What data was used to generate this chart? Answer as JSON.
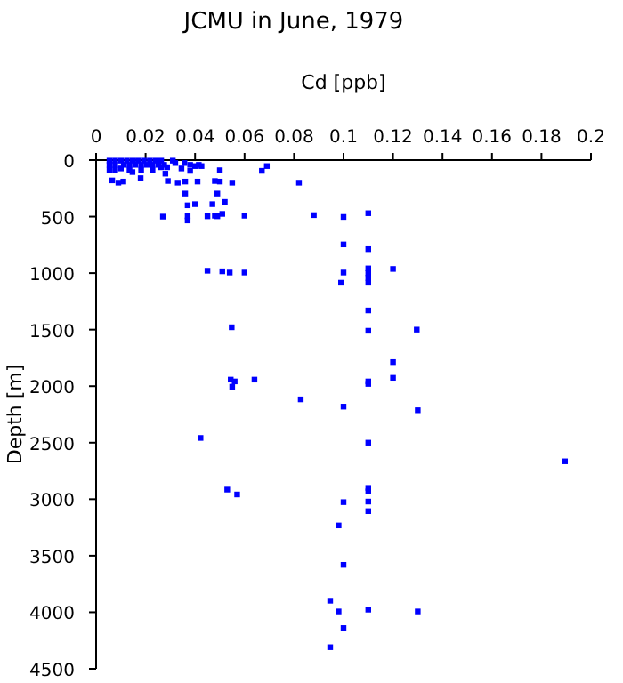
{
  "chart_data": {
    "type": "scatter",
    "title": "JCMU in June, 1979",
    "xlabel": "Cd [ppb]",
    "ylabel": "Depth [m]",
    "xlim": [
      0,
      0.2
    ],
    "xticks": [
      0,
      0.02,
      0.04,
      0.06,
      0.08,
      0.1,
      0.12,
      0.14,
      0.16,
      0.18,
      0.2
    ],
    "ylim": [
      4500,
      0
    ],
    "yticks": [
      0,
      500,
      1000,
      1500,
      2000,
      2500,
      3000,
      3500,
      4000,
      4500
    ],
    "grid": false,
    "marker": "square",
    "series": [
      {
        "color": "#0000ff",
        "x": [
          0.0054,
          0.0077,
          0.01,
          0.0124,
          0.0147,
          0.017,
          0.0193,
          0.0217,
          0.024,
          0.0263,
          0.031,
          0.0054,
          0.0077,
          0.0112,
          0.0135,
          0.0158,
          0.0182,
          0.0205,
          0.0228,
          0.0252,
          0.0275,
          0.032,
          0.0357,
          0.038,
          0.0415,
          0.0054,
          0.0077,
          0.01,
          0.0135,
          0.0182,
          0.0228,
          0.0263,
          0.0287,
          0.0345,
          0.038,
          0.04,
          0.0426,
          0.0147,
          0.067,
          0.069,
          0.05,
          0.082,
          0.055,
          0.05,
          0.048,
          0.041,
          0.036,
          0.033,
          0.029,
          0.028,
          0.018,
          0.0065,
          0.009,
          0.011,
          0.036,
          0.049,
          0.037,
          0.04,
          0.052,
          0.047,
          0.027,
          0.037,
          0.037,
          0.045,
          0.048,
          0.049,
          0.051,
          0.06,
          0.088,
          0.1,
          0.11,
          0.1,
          0.11,
          0.045,
          0.051,
          0.054,
          0.06,
          0.1,
          0.099,
          0.11,
          0.11,
          0.11,
          0.11,
          0.12,
          0.11,
          0.0548,
          0.11,
          0.1296,
          0.12,
          0.12,
          0.0544,
          0.056,
          0.055,
          0.064,
          0.11,
          0.11,
          0.0827,
          0.1,
          0.13,
          0.0422,
          0.11,
          0.1895,
          0.053,
          0.057,
          0.11,
          0.11,
          0.11,
          0.11,
          0.1,
          0.098,
          0.1,
          0.0946,
          0.098,
          0.1,
          0.0946,
          0.11,
          0.13
        ],
        "values": [
          5,
          5,
          5,
          5,
          5,
          5,
          5,
          5,
          5,
          5,
          5,
          42,
          42,
          42,
          42,
          42,
          42,
          42,
          42,
          42,
          42,
          26,
          26,
          42,
          42,
          85,
          85,
          74,
          85,
          85,
          85,
          63,
          63,
          74,
          95,
          53,
          53,
          106,
          95,
          53,
          90,
          200,
          200,
          190,
          185,
          190,
          190,
          200,
          185,
          120,
          160,
          180,
          200,
          190,
          296,
          296,
          400,
          390,
          370,
          390,
          500,
          497,
          534,
          497,
          492,
          497,
          476,
          492,
          487,
          503,
          470,
          746,
          788,
          979,
          984,
          995,
          995,
          995,
          1085,
          958,
          1000,
          1042,
          1085,
          963,
          1330,
          1479,
          1510,
          1500,
          1787,
          1926,
          1942,
          1958,
          2005,
          1942,
          1958,
          1980,
          2117,
          2181,
          2213,
          2458,
          2500,
          2665,
          2915,
          2958,
          2900,
          2931,
          3021,
          3106,
          3026,
          3232,
          3581,
          3898,
          3993,
          4140,
          4309,
          3977,
          3993
        ]
      }
    ]
  }
}
